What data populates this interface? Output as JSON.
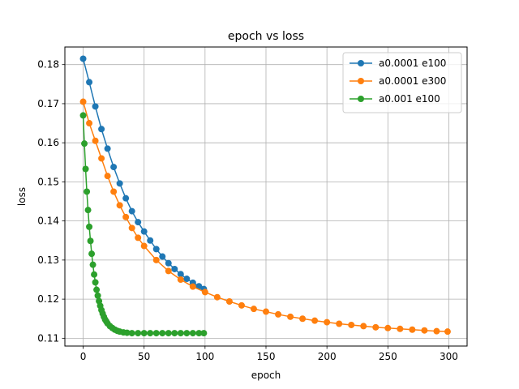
{
  "chart_data": {
    "type": "line",
    "title": "epoch vs loss",
    "xlabel": "epoch",
    "ylabel": "loss",
    "xlim": [
      -15,
      315
    ],
    "ylim": [
      0.108,
      0.1845
    ],
    "xticks": [
      0,
      50,
      100,
      150,
      200,
      250,
      300
    ],
    "xtick_labels": [
      "0",
      "50",
      "100",
      "150",
      "200",
      "250",
      "300"
    ],
    "yticks": [
      0.11,
      0.12,
      0.13,
      0.14,
      0.15,
      0.16,
      0.17,
      0.18
    ],
    "ytick_labels": [
      "0.11",
      "0.12",
      "0.13",
      "0.14",
      "0.15",
      "0.16",
      "0.17",
      "0.18"
    ],
    "grid": true,
    "legend_position": "top-right",
    "series": [
      {
        "name": "a0.0001 e100",
        "color": "#1f77b4",
        "marker": "circle",
        "x": [
          0,
          5,
          10,
          15,
          20,
          25,
          30,
          35,
          40,
          45,
          50,
          55,
          60,
          65,
          70,
          75,
          80,
          85,
          90,
          95,
          99
        ],
        "y": [
          0.1815,
          0.1755,
          0.1693,
          0.1635,
          0.1585,
          0.1538,
          0.1496,
          0.1458,
          0.1425,
          0.1397,
          0.1373,
          0.135,
          0.1328,
          0.1309,
          0.1292,
          0.1277,
          0.1264,
          0.1252,
          0.1242,
          0.1233,
          0.1226
        ]
      },
      {
        "name": "a0.0001 e300",
        "color": "#ff7f0e",
        "marker": "circle",
        "x": [
          0,
          5,
          10,
          15,
          20,
          25,
          30,
          35,
          40,
          45,
          50,
          60,
          70,
          80,
          90,
          100,
          110,
          120,
          130,
          140,
          150,
          160,
          170,
          180,
          190,
          200,
          210,
          220,
          230,
          240,
          250,
          260,
          270,
          280,
          290,
          299
        ],
        "y": [
          0.1705,
          0.165,
          0.1605,
          0.156,
          0.1515,
          0.1475,
          0.144,
          0.141,
          0.1382,
          0.1357,
          0.1336,
          0.13,
          0.1272,
          0.125,
          0.1232,
          0.1218,
          0.1205,
          0.1194,
          0.1184,
          0.1175,
          0.1168,
          0.1161,
          0.1155,
          0.115,
          0.1145,
          0.1141,
          0.1137,
          0.1134,
          0.1131,
          0.1128,
          0.1126,
          0.1124,
          0.1122,
          0.112,
          0.1118,
          0.1117
        ]
      },
      {
        "name": "a0.001 e100",
        "color": "#2ca02c",
        "marker": "circle",
        "x": [
          0,
          1,
          2,
          3,
          4,
          5,
          6,
          7,
          8,
          9,
          10,
          11,
          12,
          13,
          14,
          15,
          16,
          17,
          18,
          19,
          20,
          22,
          24,
          26,
          28,
          30,
          33,
          36,
          40,
          45,
          50,
          55,
          60,
          65,
          70,
          75,
          80,
          85,
          90,
          95,
          99
        ],
        "y": [
          0.167,
          0.1598,
          0.1533,
          0.1475,
          0.1428,
          0.1385,
          0.1349,
          0.1316,
          0.1288,
          0.1263,
          0.1243,
          0.1224,
          0.1209,
          0.1195,
          0.1183,
          0.1172,
          0.1163,
          0.1155,
          0.1148,
          0.1143,
          0.1138,
          0.1131,
          0.1126,
          0.1122,
          0.1119,
          0.1117,
          0.1115,
          0.1114,
          0.1113,
          0.1113,
          0.1113,
          0.1113,
          0.1113,
          0.1113,
          0.1113,
          0.1113,
          0.1113,
          0.1113,
          0.1113,
          0.1113,
          0.1113
        ]
      }
    ]
  }
}
